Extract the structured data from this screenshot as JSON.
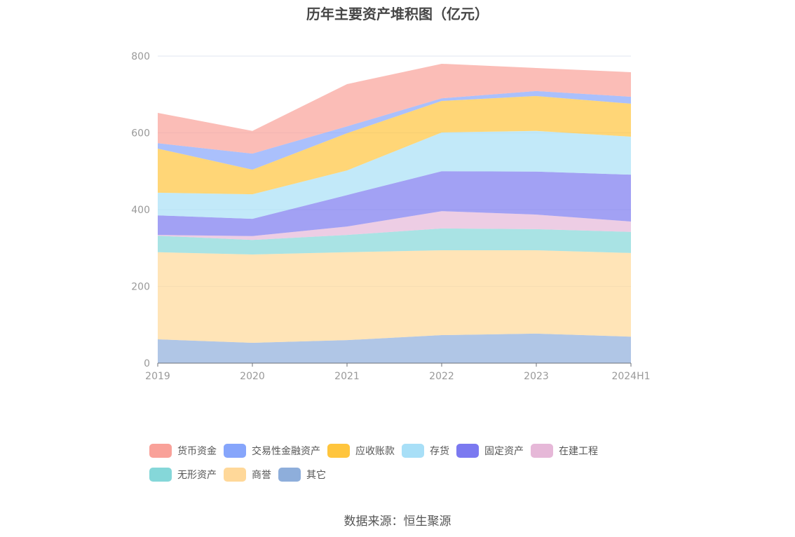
{
  "chart_data": {
    "type": "area",
    "stacked": true,
    "title": "历年主要资产堆积图（亿元）",
    "categories": [
      "2019",
      "2020",
      "2021",
      "2022",
      "2023",
      "2024H1"
    ],
    "ylim": [
      0,
      800
    ],
    "yticks": [
      "0",
      "200",
      "400",
      "600",
      "800"
    ],
    "grid": true,
    "legend_position": "bottom",
    "series": [
      {
        "name": "其它",
        "color": "#8eaedb",
        "values": [
          62,
          53,
          60,
          73,
          77,
          69
        ]
      },
      {
        "name": "商誉",
        "color": "#ffd899",
        "values": [
          227,
          230,
          229,
          221,
          217,
          218
        ]
      },
      {
        "name": "无形资产",
        "color": "#85d7d9",
        "values": [
          43,
          38,
          45,
          57,
          55,
          55
        ]
      },
      {
        "name": "在建工程",
        "color": "#e6b8d8",
        "values": [
          2,
          10,
          22,
          45,
          38,
          27
        ]
      },
      {
        "name": "固定资产",
        "color": "#7b79f0",
        "values": [
          51,
          45,
          82,
          104,
          112,
          122
        ]
      },
      {
        "name": "存货",
        "color": "#a8dff7",
        "values": [
          59,
          64,
          64,
          101,
          106,
          99
        ]
      },
      {
        "name": "应收账款",
        "color": "#ffc53d",
        "values": [
          115,
          64,
          97,
          82,
          91,
          86
        ]
      },
      {
        "name": "交易性金融资产",
        "color": "#86a5fb",
        "values": [
          14,
          42,
          18,
          7,
          13,
          18
        ]
      },
      {
        "name": "货币资金",
        "color": "#f9a199",
        "values": [
          79,
          59,
          110,
          90,
          60,
          64
        ]
      }
    ],
    "legend_order": [
      "货币资金",
      "交易性金融资产",
      "应收账款",
      "存货",
      "固定资产",
      "在建工程",
      "无形资产",
      "商誉",
      "其它"
    ]
  },
  "source": "数据来源：恒生聚源"
}
